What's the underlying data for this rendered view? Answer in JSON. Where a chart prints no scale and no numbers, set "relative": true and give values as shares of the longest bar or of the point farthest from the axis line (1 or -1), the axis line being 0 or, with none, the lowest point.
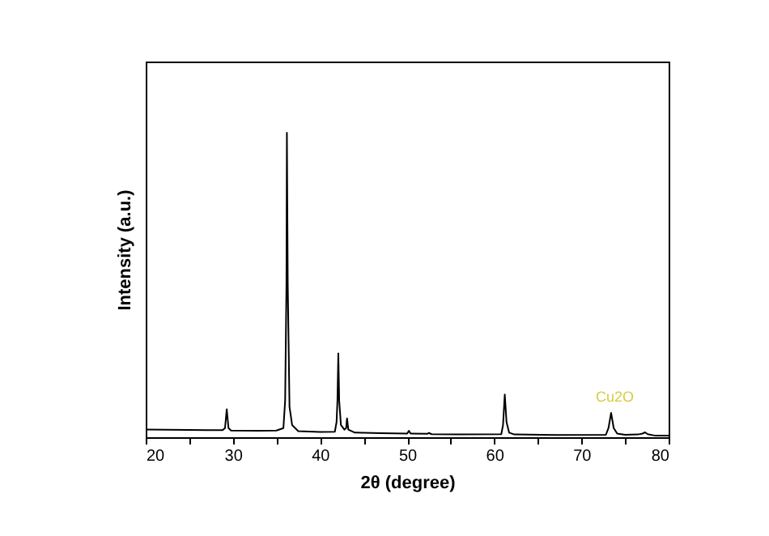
{
  "chart_data": {
    "type": "line",
    "xlabel": "2θ (degree)",
    "ylabel": "Intensity (a.u.)",
    "relative": true,
    "tick_labels": "x",
    "grid": false,
    "marker": "none",
    "line_style": "solid",
    "xlim": [
      20,
      80
    ],
    "xticks": [
      20,
      {
        "value": 25,
        "label": null
      },
      30,
      {
        "value": 35,
        "label": null
      },
      40,
      {
        "value": 45,
        "label": null
      },
      50,
      {
        "value": 55,
        "label": null
      },
      60,
      {
        "value": 65,
        "label": null
      },
      70,
      {
        "value": 75,
        "label": null
      },
      80
    ],
    "annotations": [
      "Cu2O"
    ],
    "series": [
      {
        "color": "#000000",
        "x": [
          20,
          25,
          28.8,
          29.1,
          29.3,
          29.5,
          29.8,
          33,
          35,
          35.8,
          36.0,
          36.15,
          36.2,
          36.3,
          36.5,
          36.8,
          37.5,
          40,
          41.7,
          41.9,
          42.0,
          42.1,
          42.2,
          42.4,
          42.8,
          43.0,
          43.1,
          43.25,
          44,
          47,
          50,
          50.2,
          50.4,
          52.3,
          52.5,
          52.8,
          56,
          60.8,
          61.0,
          61.2,
          61.4,
          61.7,
          62.3,
          67,
          72.8,
          73.1,
          73.4,
          73.7,
          74.1,
          75,
          76.5,
          77.0,
          77.3,
          77.6,
          78.5,
          80
        ],
        "values": [
          0.025,
          0.024,
          0.023,
          0.03,
          0.092,
          0.03,
          0.022,
          0.021,
          0.022,
          0.03,
          0.12,
          0.5,
          1.0,
          0.5,
          0.1,
          0.04,
          0.02,
          0.017,
          0.018,
          0.05,
          0.12,
          0.275,
          0.12,
          0.04,
          0.025,
          0.03,
          0.062,
          0.025,
          0.015,
          0.013,
          0.012,
          0.021,
          0.012,
          0.011,
          0.014,
          0.01,
          0.009,
          0.01,
          0.04,
          0.14,
          0.05,
          0.015,
          0.009,
          0.007,
          0.008,
          0.03,
          0.08,
          0.03,
          0.012,
          0.008,
          0.009,
          0.012,
          0.016,
          0.01,
          0.005,
          0.005
        ]
      }
    ]
  }
}
